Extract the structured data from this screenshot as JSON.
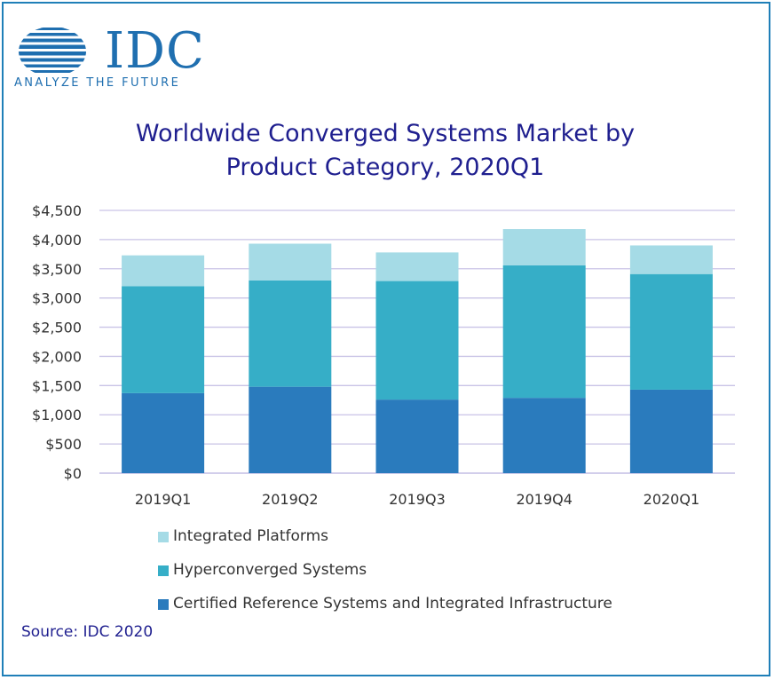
{
  "logo": {
    "wordmark": "IDC",
    "tagline": "ANALYZE THE FUTURE",
    "color": "#1f6fb0"
  },
  "title_line1": "Worldwide Converged Systems Market by",
  "title_line2": "Product Category, 2020Q1",
  "source": "Source: IDC 2020",
  "colors": {
    "border": "#1f7fb8",
    "grid": "#c9c3e6",
    "axis_text": "#333333",
    "title": "#1f1f8f"
  },
  "chart_data": {
    "type": "bar",
    "stacked": true,
    "title": "Worldwide Converged Systems Market by Product Category, 2020Q1",
    "categories": [
      "2019Q1",
      "2019Q2",
      "2019Q3",
      "2019Q4",
      "2020Q1"
    ],
    "series": [
      {
        "name": "Certified Reference Systems and Integrated Infrastructure",
        "color": "#2a7bbd",
        "values": [
          1370,
          1480,
          1260,
          1290,
          1430
        ]
      },
      {
        "name": "Hyperconverged Systems",
        "color": "#36aec7",
        "values": [
          1830,
          1820,
          2030,
          2270,
          1980
        ]
      },
      {
        "name": "Integrated Platforms",
        "color": "#a5dbe6",
        "values": [
          530,
          630,
          490,
          620,
          490
        ]
      }
    ],
    "ylim": [
      0,
      4500
    ],
    "yticks": [
      "$0",
      "$500",
      "$1,000",
      "$1,500",
      "$2,000",
      "$2,500",
      "$3,000",
      "$3,500",
      "$4,000",
      "$4,500"
    ],
    "ytick_values": [
      0,
      500,
      1000,
      1500,
      2000,
      2500,
      3000,
      3500,
      4000,
      4500
    ],
    "grid": true,
    "legend_position": "bottom",
    "legend_order": [
      "Integrated Platforms",
      "Hyperconverged Systems",
      "Certified Reference Systems and Integrated Infrastructure"
    ]
  }
}
